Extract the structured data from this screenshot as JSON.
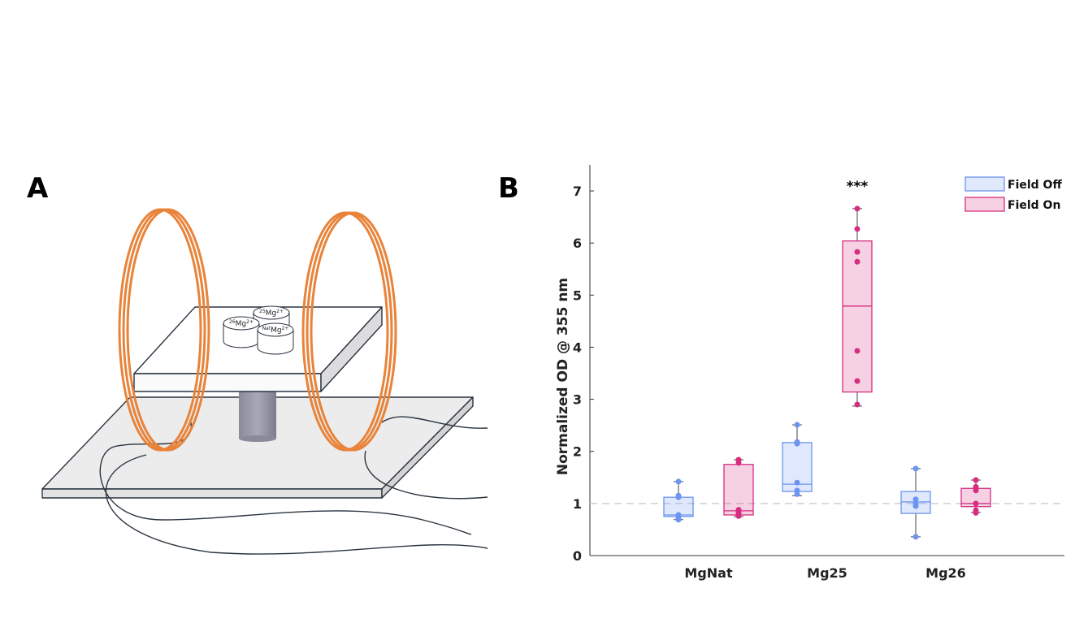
{
  "panels": {
    "a": {
      "label": "A",
      "containers": [
        {
          "mass": "26",
          "element": "Mg",
          "charge": "2+"
        },
        {
          "mass": "25",
          "element": "Mg",
          "charge": "2+"
        },
        {
          "mass": "Nat",
          "element": "Mg",
          "charge": "2+"
        }
      ]
    },
    "b": {
      "label": "B"
    }
  },
  "chart_data": {
    "type": "box",
    "ylabel": "Normalized OD @ 355 nm",
    "categories": [
      "MgNat",
      "Mg25",
      "Mg26"
    ],
    "ylim": [
      0,
      7.5
    ],
    "yticks": [
      0,
      1,
      2,
      3,
      4,
      5,
      6,
      7
    ],
    "reference_line": 1,
    "legend": "upper right",
    "annotations": [
      {
        "text": "***",
        "category": "Mg25"
      }
    ],
    "series": [
      {
        "name": "Field Off",
        "color": "#6c95f0",
        "boxes": [
          {
            "min": 0.69,
            "q1": 0.75,
            "median": 0.78,
            "q3": 1.12,
            "max": 1.42,
            "points": [
              1.42,
              1.15,
              1.12,
              0.78,
              0.72,
              0.69
            ]
          },
          {
            "min": 1.15,
            "q1": 1.23,
            "median": 1.37,
            "q3": 2.17,
            "max": 2.51,
            "points": [
              2.51,
              2.18,
              2.15,
              1.4,
              1.25,
              1.18
            ]
          },
          {
            "min": 0.36,
            "q1": 0.81,
            "median": 1.03,
            "q3": 1.23,
            "max": 1.67,
            "points": [
              1.67,
              1.08,
              1.0,
              0.95,
              0.36
            ]
          }
        ]
      },
      {
        "name": "Field On",
        "color": "#d62d80",
        "boxes": [
          {
            "min": 0.75,
            "q1": 0.78,
            "median": 0.86,
            "q3": 1.75,
            "max": 1.84,
            "points": [
              1.84,
              1.78,
              0.88,
              0.84,
              0.8,
              0.76
            ]
          },
          {
            "min": 2.87,
            "q1": 3.14,
            "median": 4.79,
            "q3": 6.04,
            "max": 6.66,
            "points": [
              6.66,
              6.27,
              5.83,
              5.64,
              3.93,
              3.35,
              2.9
            ]
          },
          {
            "min": 0.83,
            "q1": 0.94,
            "median": 1.0,
            "q3": 1.29,
            "max": 1.45,
            "points": [
              1.45,
              1.32,
              1.25,
              1.0,
              0.87,
              0.82
            ]
          }
        ]
      }
    ]
  }
}
